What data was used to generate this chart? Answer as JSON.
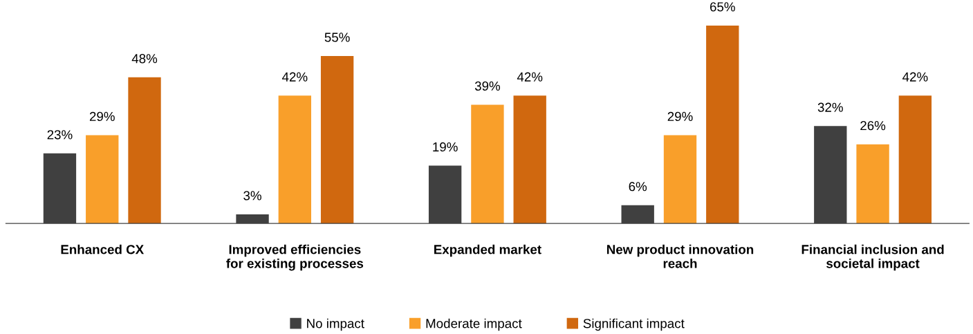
{
  "chart_data": {
    "type": "bar",
    "categories": [
      "Enhanced CX",
      "Improved efficiencies\nfor existing processes",
      "Expanded market",
      "New product innovation\nreach",
      "Financial inclusion and\nsocietal impact"
    ],
    "series": [
      {
        "name": "No impact",
        "color": "#404040",
        "values": [
          23,
          3,
          19,
          6,
          32
        ],
        "value_labels": [
          "23%",
          "3%",
          "19%",
          "6%",
          "32%"
        ]
      },
      {
        "name": "Moderate impact",
        "color": "#f99f2a",
        "values": [
          29,
          42,
          39,
          29,
          26
        ],
        "value_labels": [
          "29%",
          "42%",
          "39%",
          "29%",
          "26%"
        ]
      },
      {
        "name": "Significant impact",
        "color": "#d0680f",
        "values": [
          48,
          55,
          42,
          65,
          42
        ],
        "value_labels": [
          "48%",
          "55%",
          "42%",
          "65%",
          "42%"
        ]
      }
    ],
    "legend": "bottom",
    "grid": false
  }
}
